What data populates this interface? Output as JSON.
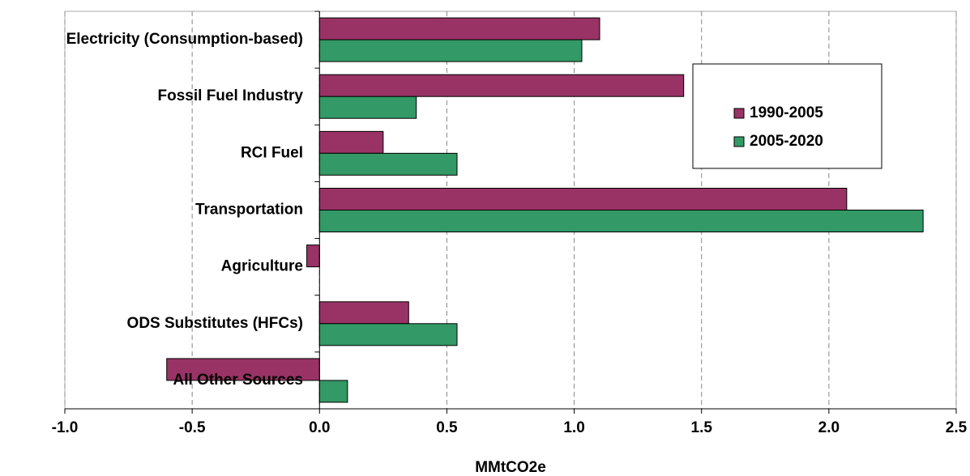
{
  "chart_data": {
    "type": "hbar",
    "x_label": "MMtCO2e",
    "categories": [
      "Electricity (Consumption-based)",
      "Fossil Fuel Industry",
      "RCI Fuel",
      "Transportation",
      "Agriculture",
      "ODS Substitutes (HFCs)",
      "All Other Sources"
    ],
    "series": [
      {
        "name": "1990-2005",
        "color": "#993366",
        "values": [
          1.1,
          1.43,
          0.25,
          2.07,
          -0.05,
          0.35,
          -0.6
        ]
      },
      {
        "name": "2005-2020",
        "color": "#339966",
        "values": [
          1.03,
          0.38,
          0.54,
          2.37,
          0,
          0.54,
          0.11
        ]
      }
    ],
    "xlim": [
      -1.0,
      2.5
    ],
    "xticks": [
      {
        "value": -1,
        "label": "-1.0"
      },
      -0.5,
      {
        "value": 0,
        "label": "0.0"
      },
      0.5,
      {
        "value": 1,
        "label": "1.0"
      },
      1.5,
      {
        "value": 2,
        "label": "2.0"
      },
      2.5
    ],
    "grid": true,
    "legend": "upper right"
  }
}
